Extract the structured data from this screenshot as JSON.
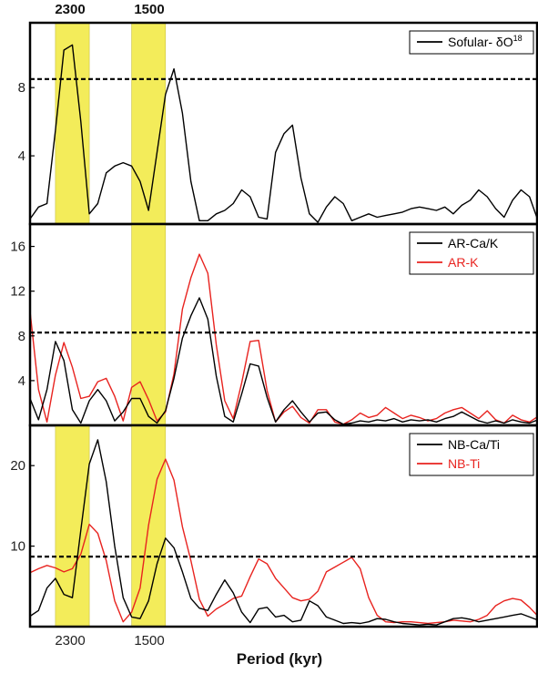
{
  "colors": {
    "black_series": "#000000",
    "red_series": "#e8231f",
    "highlight": "#f3ec5a",
    "threshold": "#000000",
    "frame": "#000000"
  },
  "top_axis_labels": [
    "2300",
    "1500"
  ],
  "bottom_axis_labels": [
    "2300",
    "1500"
  ],
  "x_title": "Period (kyr)",
  "chart_data": [
    {
      "type": "line",
      "panel": "top",
      "x_index_range": [
        0,
        60
      ],
      "ylim": [
        0,
        11.8
      ],
      "yticks": [
        4,
        8
      ],
      "threshold": 8.5,
      "highlight_bands": [
        [
          3,
          7
        ],
        [
          12,
          16
        ]
      ],
      "legend": {
        "position": "top-right",
        "text": "Sofular- δO",
        "superscript": "18"
      },
      "series": [
        {
          "name": "Sofular- δO18",
          "color": "black",
          "values": [
            0.3,
            1,
            1.2,
            5.5,
            10.2,
            10.5,
            6,
            0.6,
            1.2,
            3,
            3.4,
            3.6,
            3.4,
            2.5,
            0.8,
            4.2,
            7.6,
            9.1,
            6.5,
            2.5,
            0.2,
            0.2,
            0.6,
            0.8,
            1.2,
            2,
            1.6,
            0.4,
            0.3,
            4.2,
            5.3,
            5.8,
            2.7,
            0.6,
            0.1,
            1,
            1.6,
            1.2,
            0.2,
            0.4,
            0.6,
            0.4,
            0.5,
            0.6,
            0.7,
            0.9,
            1,
            0.9,
            0.8,
            1,
            0.6,
            1.1,
            1.4,
            2,
            1.6,
            0.9,
            0.4,
            1.4,
            2,
            1.6,
            0.2
          ]
        }
      ]
    },
    {
      "type": "line",
      "panel": "middle",
      "x_index_range": [
        0,
        60
      ],
      "ylim": [
        0,
        18
      ],
      "yticks": [
        4,
        8,
        12,
        16
      ],
      "threshold": 8.3,
      "highlight_bands": [
        [
          12,
          16
        ]
      ],
      "legend": {
        "position": "top-right"
      },
      "series": [
        {
          "name": "AR-Ca/K",
          "color": "black",
          "values": [
            2.4,
            0.5,
            3.2,
            7.5,
            5.8,
            1.4,
            0.2,
            2.2,
            3.2,
            2.2,
            0.4,
            1.2,
            2.4,
            2.4,
            0.8,
            0.2,
            1.3,
            4.2,
            7.8,
            9.8,
            11.4,
            9.5,
            4.4,
            0.8,
            0.3,
            2.8,
            5.5,
            5.3,
            2.5,
            0.3,
            1.4,
            2.2,
            1.2,
            0.3,
            1.1,
            1.2,
            0.5,
            0.1,
            0.2,
            0.4,
            0.3,
            0.5,
            0.4,
            0.6,
            0.3,
            0.5,
            0.4,
            0.5,
            0.3,
            0.6,
            0.8,
            1.2,
            0.8,
            0.4,
            0.2,
            0.4,
            0.2,
            0.5,
            0.3,
            0.2,
            0.5
          ]
        },
        {
          "name": "AR-K",
          "color": "red",
          "values": [
            10.2,
            3.2,
            0.3,
            4.5,
            7.4,
            5.2,
            2.4,
            2.6,
            3.9,
            4.2,
            2.6,
            0.4,
            3.4,
            3.9,
            2.3,
            0.4,
            1.2,
            4.6,
            10.4,
            13.2,
            15.3,
            13.6,
            7.2,
            2.2,
            0.6,
            3.8,
            7.5,
            7.6,
            3.1,
            0.3,
            1.2,
            1.7,
            0.7,
            0.2,
            1.4,
            1.4,
            0.3,
            0.1,
            0.5,
            1.1,
            0.7,
            0.9,
            1.6,
            1.1,
            0.6,
            0.9,
            0.7,
            0.4,
            0.6,
            1.1,
            1.4,
            1.6,
            1.1,
            0.6,
            1.3,
            0.5,
            0.2,
            0.9,
            0.5,
            0.3,
            0.8
          ]
        }
      ]
    },
    {
      "type": "line",
      "panel": "bottom",
      "x_index_range": [
        0,
        60
      ],
      "ylim": [
        0,
        25
      ],
      "yticks": [
        10,
        20
      ],
      "threshold": 8.7,
      "highlight_bands": [
        [
          3,
          7
        ],
        [
          12,
          16
        ]
      ],
      "legend": {
        "position": "top-right"
      },
      "series": [
        {
          "name": "NB-Ca/Ti",
          "color": "black",
          "values": [
            1.3,
            2,
            4.8,
            6,
            4,
            3.6,
            12,
            20.2,
            23.2,
            18,
            10,
            3.6,
            1.2,
            1,
            3.2,
            7.8,
            11,
            9.8,
            6.8,
            3.5,
            2.3,
            2,
            4,
            5.8,
            4.2,
            1.8,
            0.5,
            2.2,
            2.4,
            1.2,
            1.4,
            0.6,
            0.8,
            3.2,
            2.6,
            1.2,
            0.8,
            0.4,
            0.5,
            0.4,
            0.6,
            1,
            0.9,
            0.6,
            0.4,
            0.3,
            0.2,
            0.3,
            0.2,
            0.6,
            1,
            1.1,
            0.9,
            0.6,
            0.8,
            1,
            1.2,
            1.4,
            1.6,
            1.2,
            0.8
          ]
        },
        {
          "name": "NB-Ti",
          "color": "red",
          "values": [
            6.7,
            7.2,
            7.6,
            7.3,
            6.8,
            7.2,
            9,
            12.7,
            11.6,
            8.2,
            3.2,
            0.6,
            1.8,
            4.8,
            12.6,
            18.3,
            20.8,
            18.2,
            12.4,
            8.2,
            3.4,
            1.3,
            2.2,
            2.8,
            3.5,
            3.8,
            6.2,
            8.4,
            7.8,
            6,
            4.8,
            3.6,
            3.2,
            3.4,
            4.4,
            6.8,
            7.4,
            8,
            8.6,
            7.2,
            3.6,
            1.4,
            0.6,
            0.5,
            0.6,
            0.6,
            0.5,
            0.4,
            0.5,
            0.6,
            0.8,
            0.7,
            0.6,
            0.9,
            1.4,
            2.6,
            3.2,
            3.5,
            3.3,
            2.4,
            1.3
          ]
        }
      ]
    }
  ]
}
